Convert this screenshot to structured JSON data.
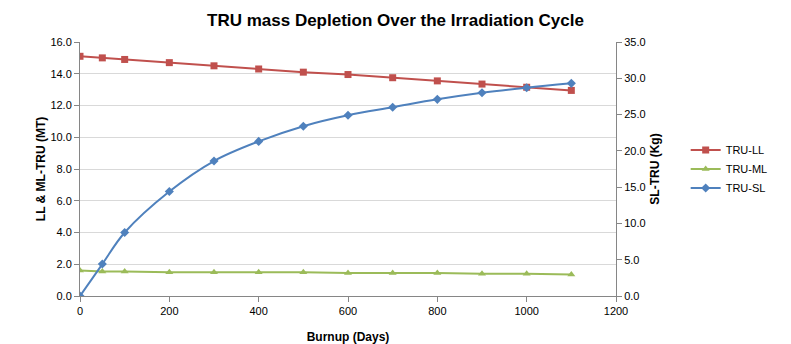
{
  "chart_data": {
    "type": "line",
    "title": "TRU mass Depletion Over the Irradiation Cycle",
    "x_label": "Burnup (Days)",
    "y_label": "LL & ML-TRU (MT)",
    "y2_label": "SL-TRU (Kg)",
    "x": [
      0,
      50,
      100,
      200,
      300,
      400,
      500,
      600,
      700,
      800,
      900,
      1000,
      1100
    ],
    "series": [
      {
        "name": "TRU-LL",
        "color": "#c0504d",
        "marker": "square",
        "line_style": "solid",
        "values": [
          15.1,
          15.0,
          14.9,
          14.7,
          14.5,
          14.3,
          14.1,
          13.95,
          13.75,
          13.55,
          13.35,
          13.15,
          12.95
        ]
      },
      {
        "name": "TRU-ML",
        "color": "#9bbb59",
        "marker": "triangle",
        "line_style": "solid",
        "values": [
          1.6,
          1.55,
          1.55,
          1.5,
          1.5,
          1.5,
          1.5,
          1.45,
          1.45,
          1.45,
          1.4,
          1.4,
          1.35
        ]
      },
      {
        "name": "TRU-SL",
        "color": "#4f81bd",
        "marker": "diamond",
        "line_style": "smooth",
        "axis": "y2",
        "values": [
          0,
          4.4,
          8.75,
          14.4,
          18.6,
          21.3,
          23.4,
          24.9,
          26.0,
          27.1,
          28.0,
          28.7,
          29.3
        ]
      }
    ],
    "xlim": [
      0,
      1200
    ],
    "xticks": [
      0,
      200,
      400,
      600,
      800,
      1000,
      1200
    ],
    "ylim": [
      0,
      16
    ],
    "yticks": [
      {
        "value": 0,
        "label": "0.0"
      },
      {
        "value": 2,
        "label": "2.0"
      },
      {
        "value": 4,
        "label": "4.0"
      },
      {
        "value": 6,
        "label": "6.0"
      },
      {
        "value": 8,
        "label": "8.0"
      },
      {
        "value": 10,
        "label": "10.0"
      },
      {
        "value": 12,
        "label": "12.0"
      },
      {
        "value": 14,
        "label": "14.0"
      },
      {
        "value": 16,
        "label": "16.0"
      }
    ],
    "y2lim": [
      0,
      35
    ],
    "y2ticks": [
      {
        "value": 0,
        "label": "0.0"
      },
      {
        "value": 5,
        "label": "5.0"
      },
      {
        "value": 10,
        "label": "10.0"
      },
      {
        "value": 15,
        "label": "15.0"
      },
      {
        "value": 20,
        "label": "20.0"
      },
      {
        "value": 25,
        "label": "25.0"
      },
      {
        "value": 30,
        "label": "30.0"
      },
      {
        "value": 35,
        "label": "35.0"
      }
    ],
    "grid": true,
    "legend": "right"
  }
}
